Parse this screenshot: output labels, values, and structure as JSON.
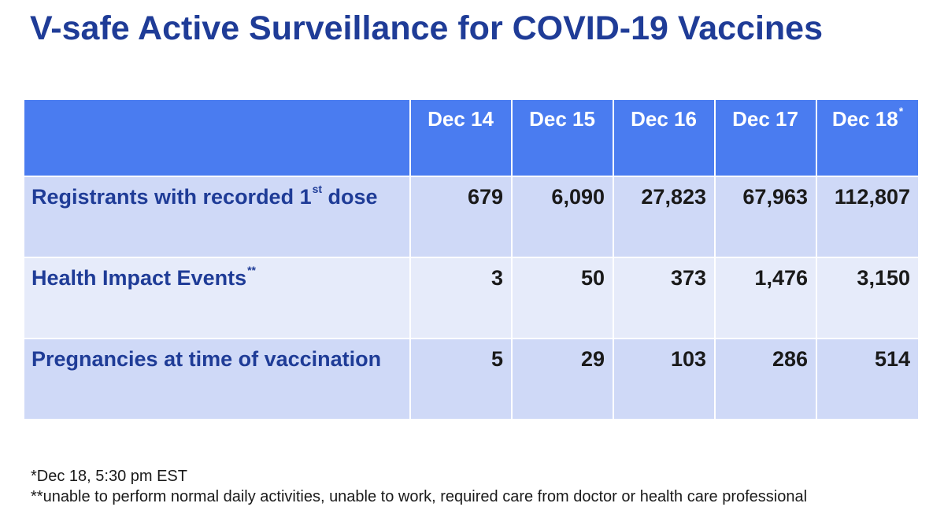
{
  "title": "V-safe Active Surveillance for COVID-19 Vaccines",
  "table": {
    "columns": [
      {
        "label": "Dec 14",
        "mark": ""
      },
      {
        "label": "Dec 15",
        "mark": ""
      },
      {
        "label": "Dec 16",
        "mark": ""
      },
      {
        "label": "Dec 17",
        "mark": ""
      },
      {
        "label": "Dec 18",
        "mark": "*"
      }
    ],
    "rows": [
      {
        "label": "Registrants with recorded 1",
        "label_sup": "st",
        "label_suffix": " dose",
        "values": [
          "679",
          "6,090",
          "27,823",
          "67,963",
          "112,807"
        ]
      },
      {
        "label": "Health Impact Events",
        "label_sup": "**",
        "label_suffix": "",
        "values": [
          "3",
          "50",
          "373",
          "1,476",
          "3,150"
        ]
      },
      {
        "label": "Pregnancies at time of vaccination",
        "label_sup": "",
        "label_suffix": "",
        "values": [
          "5",
          "29",
          "103",
          "286",
          "514"
        ]
      }
    ]
  },
  "footnotes": [
    "*Dec 18, 5:30 pm EST",
    "**unable to perform normal daily activities, unable to work, required care from doctor or health care professional"
  ]
}
